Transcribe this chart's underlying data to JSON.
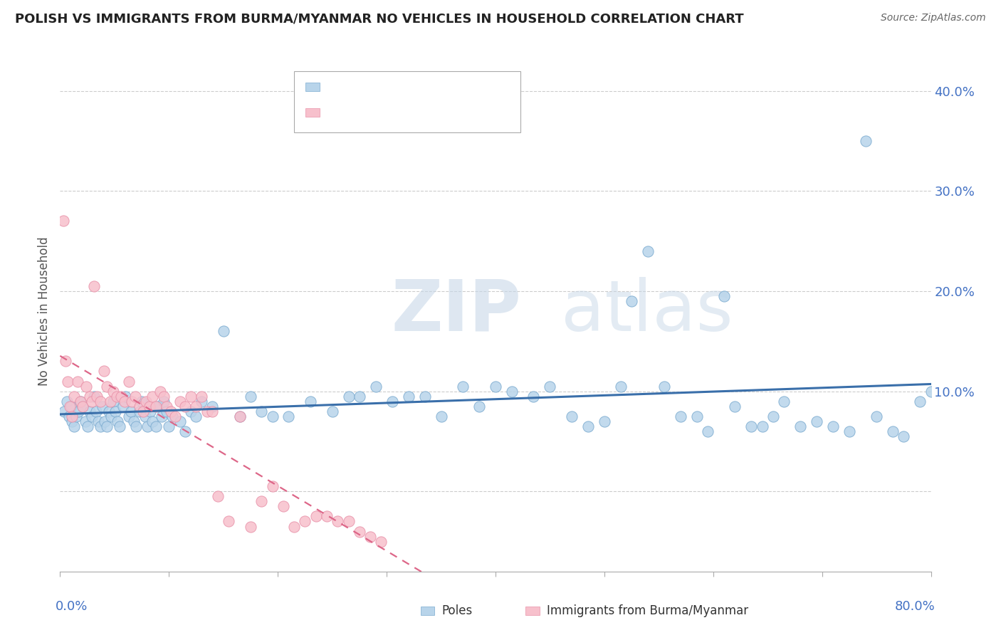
{
  "title": "POLISH VS IMMIGRANTS FROM BURMA/MYANMAR NO VEHICLES IN HOUSEHOLD CORRELATION CHART",
  "source": "Source: ZipAtlas.com",
  "ylabel": "No Vehicles in Household",
  "xlim": [
    0.0,
    80.0
  ],
  "ylim": [
    -8.0,
    44.0
  ],
  "yticks": [
    0.0,
    10.0,
    20.0,
    30.0,
    40.0
  ],
  "ytick_right_labels": [
    "",
    "10.0%",
    "20.0%",
    "30.0%",
    "40.0%"
  ],
  "blue_color": "#b8d4ea",
  "blue_edge": "#7aaacf",
  "pink_color": "#f7c0cc",
  "pink_edge": "#e890a8",
  "blue_line_color": "#3a6faa",
  "pink_line_color": "#dd6688",
  "watermark_zip": "ZIP",
  "watermark_atlas": "atlas",
  "blue_scatter_x": [
    0.4,
    0.6,
    0.8,
    1.0,
    1.1,
    1.3,
    1.5,
    1.7,
    1.9,
    2.1,
    2.3,
    2.5,
    2.7,
    2.9,
    3.1,
    3.3,
    3.5,
    3.7,
    3.9,
    4.1,
    4.3,
    4.5,
    4.7,
    4.9,
    5.1,
    5.3,
    5.5,
    5.8,
    6.0,
    6.3,
    6.5,
    6.8,
    7.0,
    7.3,
    7.5,
    7.8,
    8.0,
    8.3,
    8.5,
    8.8,
    9.0,
    9.3,
    9.5,
    9.8,
    10.0,
    10.3,
    11.0,
    11.5,
    12.0,
    12.5,
    13.0,
    14.0,
    15.0,
    16.5,
    17.5,
    18.5,
    19.5,
    21.0,
    23.0,
    25.0,
    26.5,
    27.5,
    29.0,
    30.5,
    32.0,
    33.5,
    35.0,
    37.0,
    38.5,
    40.0,
    41.5,
    43.5,
    45.0,
    47.0,
    48.5,
    50.0,
    51.5,
    52.5,
    54.0,
    55.5,
    57.0,
    58.5,
    59.5,
    61.0,
    62.0,
    63.5,
    64.5,
    65.5,
    66.5,
    68.0,
    69.5,
    71.0,
    72.5,
    74.0,
    75.0,
    76.5,
    77.5,
    79.0,
    80.0
  ],
  "blue_scatter_y": [
    8.0,
    9.0,
    7.5,
    8.5,
    7.0,
    6.5,
    7.5,
    8.0,
    9.0,
    8.5,
    7.0,
    6.5,
    8.0,
    7.5,
    9.5,
    8.0,
    7.0,
    6.5,
    8.5,
    7.0,
    6.5,
    8.0,
    7.5,
    9.0,
    8.0,
    7.0,
    6.5,
    8.5,
    9.5,
    7.5,
    8.0,
    7.0,
    6.5,
    8.0,
    9.0,
    7.5,
    6.5,
    8.0,
    7.0,
    6.5,
    8.5,
    7.5,
    9.0,
    8.0,
    6.5,
    7.5,
    7.0,
    6.0,
    8.0,
    7.5,
    9.0,
    8.5,
    16.0,
    7.5,
    9.5,
    8.0,
    7.5,
    7.5,
    9.0,
    8.0,
    9.5,
    9.5,
    10.5,
    9.0,
    9.5,
    9.5,
    7.5,
    10.5,
    8.5,
    10.5,
    10.0,
    9.5,
    10.5,
    7.5,
    6.5,
    7.0,
    10.5,
    19.0,
    24.0,
    10.5,
    7.5,
    7.5,
    6.0,
    19.5,
    8.5,
    6.5,
    6.5,
    7.5,
    9.0,
    6.5,
    7.0,
    6.5,
    6.0,
    35.0,
    7.5,
    6.0,
    5.5,
    9.0,
    10.0
  ],
  "pink_scatter_x": [
    0.3,
    0.5,
    0.7,
    0.9,
    1.1,
    1.3,
    1.6,
    1.9,
    2.1,
    2.4,
    2.7,
    2.9,
    3.1,
    3.4,
    3.7,
    4.0,
    4.3,
    4.6,
    4.9,
    5.2,
    5.6,
    5.9,
    6.3,
    6.6,
    6.9,
    7.3,
    7.6,
    7.9,
    8.2,
    8.5,
    8.8,
    9.2,
    9.5,
    9.8,
    10.2,
    10.6,
    11.0,
    11.5,
    12.0,
    12.5,
    13.0,
    13.5,
    14.0,
    14.5,
    15.5,
    16.5,
    17.5,
    18.5,
    19.5,
    20.5,
    21.5,
    22.5,
    23.5,
    24.5,
    25.5,
    26.5,
    27.5,
    28.5,
    29.5
  ],
  "pink_scatter_y": [
    27.0,
    13.0,
    11.0,
    8.5,
    7.5,
    9.5,
    11.0,
    9.0,
    8.5,
    10.5,
    9.5,
    9.0,
    20.5,
    9.5,
    9.0,
    12.0,
    10.5,
    9.0,
    10.0,
    9.5,
    9.5,
    9.0,
    11.0,
    9.0,
    9.5,
    8.5,
    8.0,
    9.0,
    8.5,
    9.5,
    8.5,
    10.0,
    9.5,
    8.5,
    8.0,
    7.5,
    9.0,
    8.5,
    9.5,
    8.5,
    9.5,
    8.0,
    8.0,
    -0.5,
    -3.0,
    7.5,
    -3.5,
    -1.0,
    0.5,
    -1.5,
    -3.5,
    -3.0,
    -2.5,
    -2.5,
    -3.0,
    -3.0,
    -4.0,
    -4.5,
    -5.0
  ]
}
